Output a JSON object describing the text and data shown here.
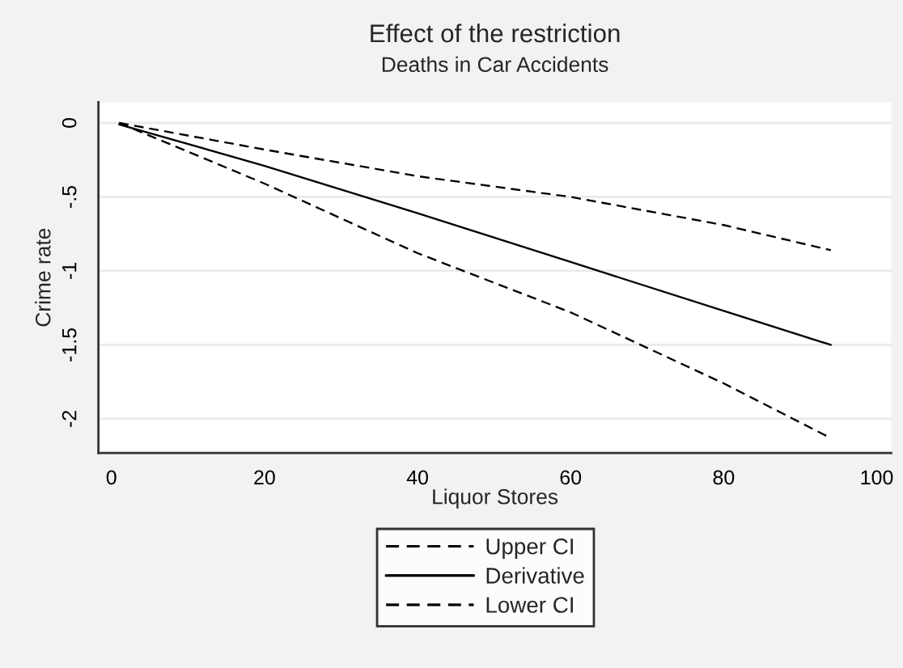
{
  "chart_data": {
    "type": "line",
    "title": "Effect of the restriction",
    "subtitle": "Deaths in Car Accidents",
    "xlabel": "Liquor Stores",
    "ylabel": "Crime rate",
    "xlim": [
      -1.7,
      101.9
    ],
    "ylim": [
      -2.23,
      0.14
    ],
    "xticks": [
      0,
      20,
      40,
      60,
      80,
      100
    ],
    "yticks": [
      0,
      {
        "value": -0.5,
        "label": "-.5"
      },
      -1,
      -1.5,
      -2
    ],
    "grid": "y",
    "legend": "bottom",
    "marker": "none",
    "series": [
      {
        "name": "Upper CI",
        "color": "#000000",
        "line_style": "dashed",
        "x": [
          1,
          20,
          40,
          60,
          80,
          94
        ],
        "values": [
          0,
          -0.18,
          -0.36,
          -0.5,
          -0.69,
          -0.86
        ]
      },
      {
        "name": "Derivative",
        "color": "#000000",
        "line_style": "solid",
        "x": [
          1,
          20,
          40,
          60,
          80,
          94
        ],
        "values": [
          -0.01,
          -0.29,
          -0.61,
          -0.94,
          -1.27,
          -1.5
        ]
      },
      {
        "name": "Lower CI",
        "color": "#000000",
        "line_style": "dashed",
        "x": [
          1,
          20,
          40,
          60,
          80,
          94
        ],
        "values": [
          0,
          -0.41,
          -0.88,
          -1.28,
          -1.76,
          -2.13
        ]
      }
    ]
  }
}
